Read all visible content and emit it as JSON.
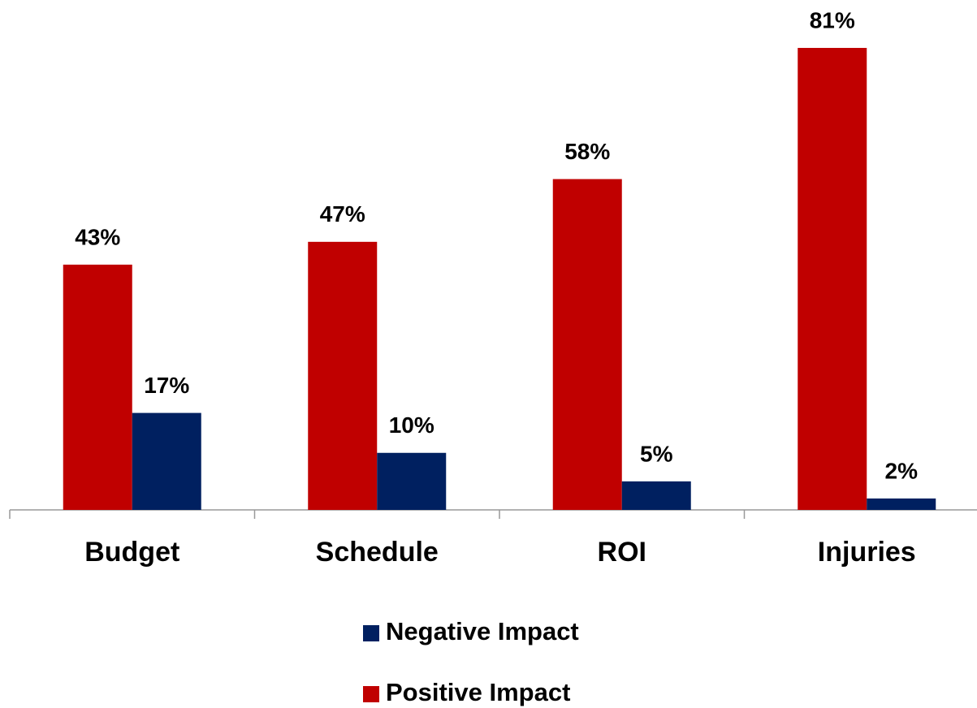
{
  "chart_data": {
    "type": "bar",
    "categories": [
      "Budget",
      "Schedule",
      "ROI",
      "Injuries"
    ],
    "series": [
      {
        "name": "Positive Impact",
        "color": "#c00000",
        "values": [
          43,
          47,
          58,
          81
        ],
        "value_labels": [
          "43%",
          "47%",
          "58%",
          "81%"
        ]
      },
      {
        "name": "Negative Impact",
        "color": "#002060",
        "values": [
          17,
          10,
          5,
          2
        ],
        "value_labels": [
          "17%",
          "10%",
          "5%",
          "2%"
        ]
      }
    ],
    "legend": "bottom"
  }
}
